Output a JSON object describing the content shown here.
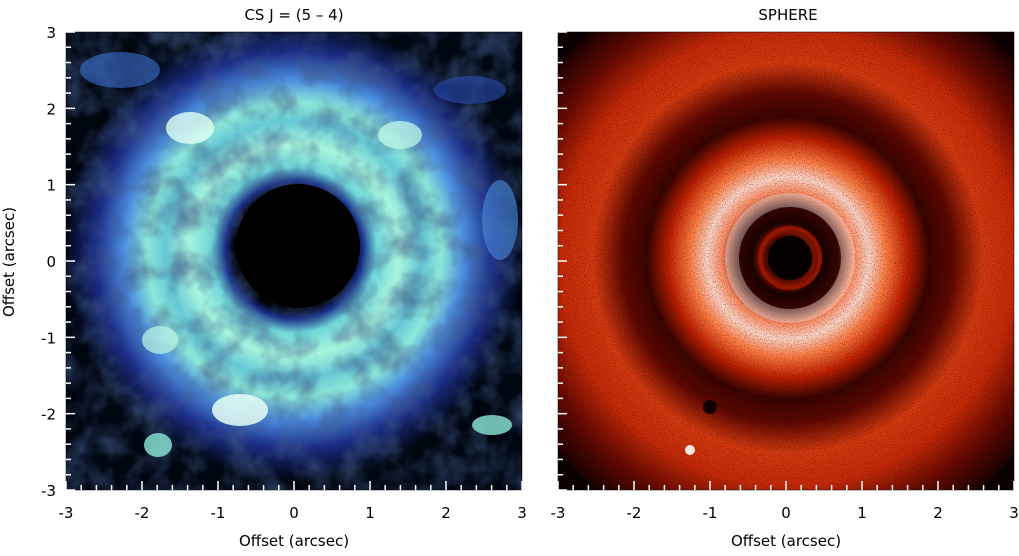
{
  "panels": [
    {
      "id": "cs",
      "title": "CS J = (5 – 4)",
      "xlabel": "Offset (arcsec)",
      "ylabel": "Offset (arcsec)",
      "xlim": [
        -3,
        3
      ],
      "ylim": [
        -3,
        3
      ],
      "xticks": [
        "-3",
        "-2",
        "-1",
        "0",
        "1",
        "2",
        "3"
      ],
      "yticks": [
        "3",
        "2",
        "1",
        "0",
        "-1",
        "-2",
        "-3"
      ],
      "colormap": [
        "#000814",
        "#1c2f88",
        "#3d6fd4",
        "#5fb8e0",
        "#9ef0d8",
        "#e6fff6"
      ]
    },
    {
      "id": "sphere",
      "title": "SPHERE",
      "xlabel": "Offset (arcsec)",
      "xlim": [
        -3,
        3
      ],
      "ylim": [
        -3,
        3
      ],
      "xticks": [
        "-3",
        "-2",
        "-1",
        "0",
        "1",
        "2",
        "3"
      ],
      "colormap": [
        "#000000",
        "#4a0500",
        "#b01a00",
        "#ee4a10",
        "#ffa080",
        "#ffffff"
      ]
    }
  ]
}
